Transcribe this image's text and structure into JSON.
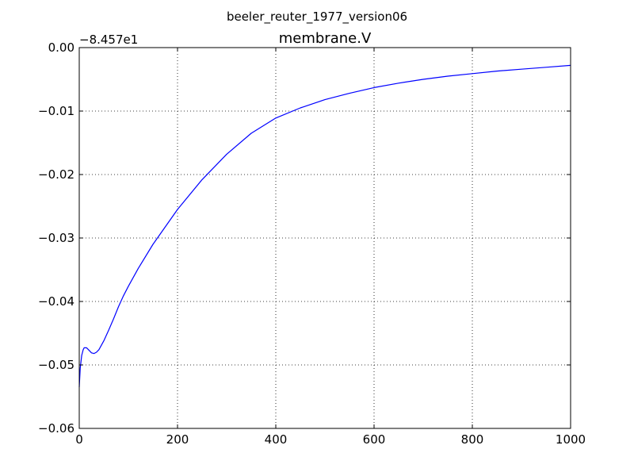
{
  "chart_data": {
    "type": "line",
    "suptitle": "beeler_reuter_1977_version06",
    "title": "membrane.V",
    "xlabel": "",
    "ylabel": "",
    "y_offset_label": "−8.457e1",
    "xlim": [
      0,
      1000
    ],
    "ylim": [
      -0.06,
      0.0
    ],
    "xticks": [
      0,
      200,
      400,
      600,
      800,
      1000
    ],
    "xtick_labels": [
      "0",
      "200",
      "400",
      "600",
      "800",
      "1000"
    ],
    "yticks": [
      0.0,
      -0.01,
      -0.02,
      -0.03,
      -0.04,
      -0.05,
      -0.06
    ],
    "ytick_labels": [
      "0.00",
      "−0.01",
      "−0.02",
      "−0.03",
      "−0.04",
      "−0.05",
      "−0.06"
    ],
    "grid": true,
    "series": [
      {
        "color": "#0000ff",
        "x": [
          0,
          2,
          5,
          8,
          10,
          15,
          20,
          25,
          30,
          35,
          40,
          45,
          50,
          60,
          70,
          80,
          90,
          100,
          120,
          150,
          200,
          250,
          300,
          350,
          400,
          450,
          500,
          550,
          600,
          650,
          700,
          750,
          800,
          850,
          900,
          950,
          1000
        ],
        "y": [
          -0.0535,
          -0.0505,
          -0.0485,
          -0.0476,
          -0.0473,
          -0.0473,
          -0.0477,
          -0.0481,
          -0.0482,
          -0.048,
          -0.0476,
          -0.0469,
          -0.0462,
          -0.0445,
          -0.0427,
          -0.0408,
          -0.0391,
          -0.0376,
          -0.0348,
          -0.031,
          -0.0255,
          -0.0208,
          -0.0168,
          -0.0135,
          -0.0111,
          -0.0095,
          -0.0082,
          -0.0072,
          -0.0063,
          -0.0056,
          -0.005,
          -0.0045,
          -0.0041,
          -0.0037,
          -0.0034,
          -0.0031,
          -0.0028
        ]
      }
    ]
  }
}
